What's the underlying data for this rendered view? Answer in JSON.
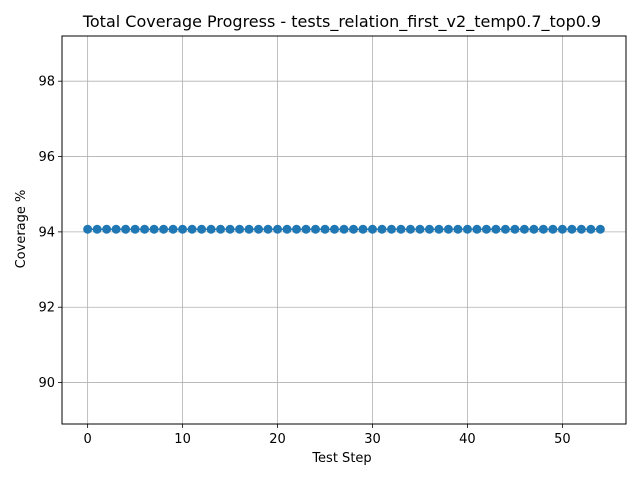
{
  "chart_data": {
    "type": "line",
    "title": "Total Coverage Progress - tests_relation_first_v2_temp0.7_top0.9",
    "xlabel": "Test Step",
    "ylabel": "Coverage %",
    "xlim": [
      -2.7,
      56.7
    ],
    "ylim": [
      88.9,
      99.2
    ],
    "x_ticks": [
      0,
      10,
      20,
      30,
      40,
      50
    ],
    "y_ticks": [
      90,
      92,
      94,
      96,
      98
    ],
    "grid": true,
    "marker": "circle",
    "series": [
      {
        "color": "#1f77b4",
        "x": [
          0,
          1,
          2,
          3,
          4,
          5,
          6,
          7,
          8,
          9,
          10,
          11,
          12,
          13,
          14,
          15,
          16,
          17,
          18,
          19,
          20,
          21,
          22,
          23,
          24,
          25,
          26,
          27,
          28,
          29,
          30,
          31,
          32,
          33,
          34,
          35,
          36,
          37,
          38,
          39,
          40,
          41,
          42,
          43,
          44,
          45,
          46,
          47,
          48,
          49,
          50,
          51,
          52,
          53,
          54
        ],
        "y": [
          94.07,
          94.07,
          94.07,
          94.07,
          94.07,
          94.07,
          94.07,
          94.07,
          94.07,
          94.07,
          94.07,
          94.07,
          94.07,
          94.07,
          94.07,
          94.07,
          94.07,
          94.07,
          94.07,
          94.07,
          94.07,
          94.07,
          94.07,
          94.07,
          94.07,
          94.07,
          94.07,
          94.07,
          94.07,
          94.07,
          94.07,
          94.07,
          94.07,
          94.07,
          94.07,
          94.07,
          94.07,
          94.07,
          94.07,
          94.07,
          94.07,
          94.07,
          94.07,
          94.07,
          94.07,
          94.07,
          94.07,
          94.07,
          94.07,
          94.07,
          94.07,
          94.07,
          94.07,
          94.07,
          94.07
        ]
      }
    ]
  }
}
